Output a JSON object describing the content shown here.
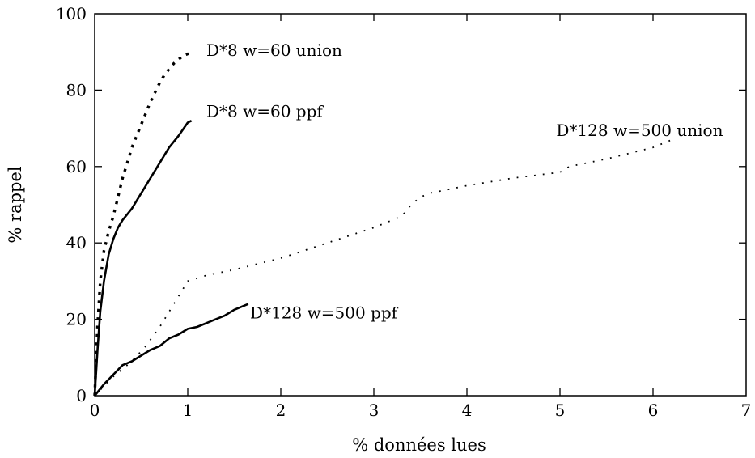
{
  "chart_data": {
    "type": "line",
    "title": "",
    "xlabel": "% données lues",
    "ylabel": "% rappel",
    "xlim": [
      0,
      7
    ],
    "ylim": [
      0,
      100
    ],
    "xticks": [
      "0",
      "1",
      "2",
      "3",
      "4",
      "5",
      "6",
      "7"
    ],
    "yticks": [
      "0",
      "20",
      "40",
      "60",
      "80",
      "100"
    ],
    "grid": false,
    "colors": {
      "series": "#000000",
      "axes": "#000000"
    },
    "series": [
      {
        "name": "D*8 w=60 union",
        "style": "dotted-square",
        "x": [
          0,
          0.03,
          0.06,
          0.1,
          0.15,
          0.2,
          0.25,
          0.3,
          0.35,
          0.4,
          0.45,
          0.5,
          0.55,
          0.6,
          0.65,
          0.7,
          0.75,
          0.8,
          0.85,
          0.9,
          0.95,
          1.0,
          1.05
        ],
        "y": [
          0,
          18,
          30,
          38,
          43,
          47,
          52,
          57,
          61,
          65,
          68,
          71,
          74,
          77,
          79.5,
          82,
          84,
          85.5,
          87,
          88,
          89,
          89.5,
          90
        ]
      },
      {
        "name": "D*8 w=60 ppf",
        "style": "solid",
        "x": [
          0,
          0.03,
          0.06,
          0.1,
          0.15,
          0.2,
          0.25,
          0.3,
          0.4,
          0.5,
          0.6,
          0.7,
          0.8,
          0.9,
          1.0,
          1.04
        ],
        "y": [
          0,
          12,
          22,
          30,
          37,
          41,
          44,
          46,
          49,
          53,
          57,
          61,
          65,
          68,
          71.5,
          72
        ]
      },
      {
        "name": "D*128 w=500 union",
        "style": "dotted",
        "x": [
          0,
          0.2,
          0.4,
          0.55,
          0.7,
          0.8,
          0.9,
          1.0,
          1.2,
          1.5,
          2.0,
          2.5,
          3.0,
          3.3,
          3.4,
          3.5,
          3.6,
          4.0,
          4.5,
          5.0,
          5.1,
          5.5,
          6.0,
          6.2
        ],
        "y": [
          0,
          5,
          9,
          13,
          18,
          22,
          26,
          30,
          31.5,
          33,
          36,
          40,
          44,
          47,
          50,
          52,
          53,
          55,
          57,
          58.5,
          60,
          62,
          65,
          67
        ]
      },
      {
        "name": "D*128 w=500 ppf",
        "style": "solid",
        "x": [
          0,
          0.1,
          0.2,
          0.3,
          0.4,
          0.5,
          0.6,
          0.7,
          0.8,
          0.9,
          1.0,
          1.1,
          1.2,
          1.3,
          1.4,
          1.5,
          1.6,
          1.65
        ],
        "y": [
          0,
          3,
          5.5,
          8,
          9,
          10.5,
          12,
          13,
          15,
          16,
          17.5,
          18,
          19,
          20,
          21,
          22.5,
          23.5,
          24
        ]
      }
    ],
    "annotations": [
      {
        "text": "D*8 w=60 union",
        "x": 1.2,
        "y": 89
      },
      {
        "text": "D*8 w=60 ppf",
        "x": 1.2,
        "y": 73
      },
      {
        "text": "D*128 w=500 union",
        "x": 4.96,
        "y": 68
      },
      {
        "text": "D*128 w=500 ppf",
        "x": 1.67,
        "y": 20.2
      }
    ]
  }
}
